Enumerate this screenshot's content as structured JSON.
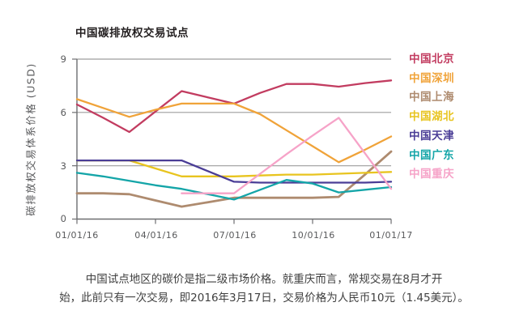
{
  "title": "中国碳排放权交易试点",
  "y_axis_title": "碳排放权交易体系价格 (USD)",
  "footnote": {
    "line1": "中国试点地区的碳价是指二级市场价格。就重庆而言，常规交易在8月才开",
    "line2": "始，此前只有一次交易，即2016年3月17日，交易价格为人民币10元（1.45美元）。"
  },
  "chart_data": {
    "type": "line",
    "title": "中国碳排放权交易试点",
    "ylabel": "碳排放权交易体系价格 (USD)",
    "ylim": [
      0,
      9
    ],
    "grid": "horizontal gridlines at 3, 6, 9; darker baseline at 0",
    "legend_position": "right",
    "x": [
      "01/16",
      "02/16",
      "03/16",
      "04/16",
      "05/16",
      "06/16",
      "07/16",
      "08/16",
      "09/16",
      "10/16",
      "11/16",
      "12/16",
      "01/17"
    ],
    "xtick_labels": [
      "01/01/16",
      "04/01/16",
      "07/01/16",
      "10/01/16",
      "01/01/17"
    ],
    "xtick_indices": [
      0,
      3,
      6,
      9,
      12
    ],
    "ytick_labels": [
      "9",
      "6",
      "3",
      "0"
    ],
    "series": [
      {
        "key": "beijing",
        "name": "中国北京",
        "color": "#c23c60",
        "values": [
          6.45,
          5.7,
          4.9,
          6.05,
          7.2,
          6.85,
          6.5,
          7.1,
          7.6,
          7.6,
          7.45,
          7.65,
          7.8
        ]
      },
      {
        "key": "shenzhen",
        "name": "中国深圳",
        "color": "#f0a339",
        "values": [
          6.75,
          6.25,
          5.75,
          6.15,
          6.5,
          6.5,
          6.5,
          5.9,
          5.0,
          4.1,
          3.2,
          3.9,
          4.65
        ]
      },
      {
        "key": "shanghai",
        "name": "中国上海",
        "color": "#ae8b6f",
        "values": [
          1.45,
          1.45,
          1.4,
          1.05,
          0.7,
          0.95,
          1.2,
          1.2,
          1.2,
          1.2,
          1.25,
          2.5,
          3.8
        ]
      },
      {
        "key": "hubei",
        "name": "中国湖北",
        "color": "#e8c41f",
        "values": [
          3.3,
          3.3,
          3.3,
          2.85,
          2.4,
          2.4,
          2.4,
          2.45,
          2.5,
          2.5,
          2.55,
          2.6,
          2.65
        ]
      },
      {
        "key": "tianjin",
        "name": "中国天津",
        "color": "#4a3d96",
        "values": [
          3.3,
          3.3,
          3.3,
          3.3,
          3.3,
          2.7,
          2.1,
          2.05,
          2.05,
          2.05,
          2.05,
          2.05,
          2.1
        ]
      },
      {
        "key": "guangdong",
        "name": "中国广东",
        "color": "#14a5a8",
        "values": [
          2.6,
          2.4,
          2.15,
          1.9,
          1.7,
          1.4,
          1.1,
          1.65,
          2.2,
          2.0,
          1.5,
          1.65,
          1.8
        ]
      },
      {
        "key": "chongqing",
        "name": "中国重庆",
        "color": "#f6a3c8",
        "values": [
          null,
          null,
          null,
          null,
          1.45,
          1.45,
          1.45,
          2.55,
          3.65,
          4.7,
          5.7,
          3.7,
          1.7
        ]
      }
    ]
  }
}
